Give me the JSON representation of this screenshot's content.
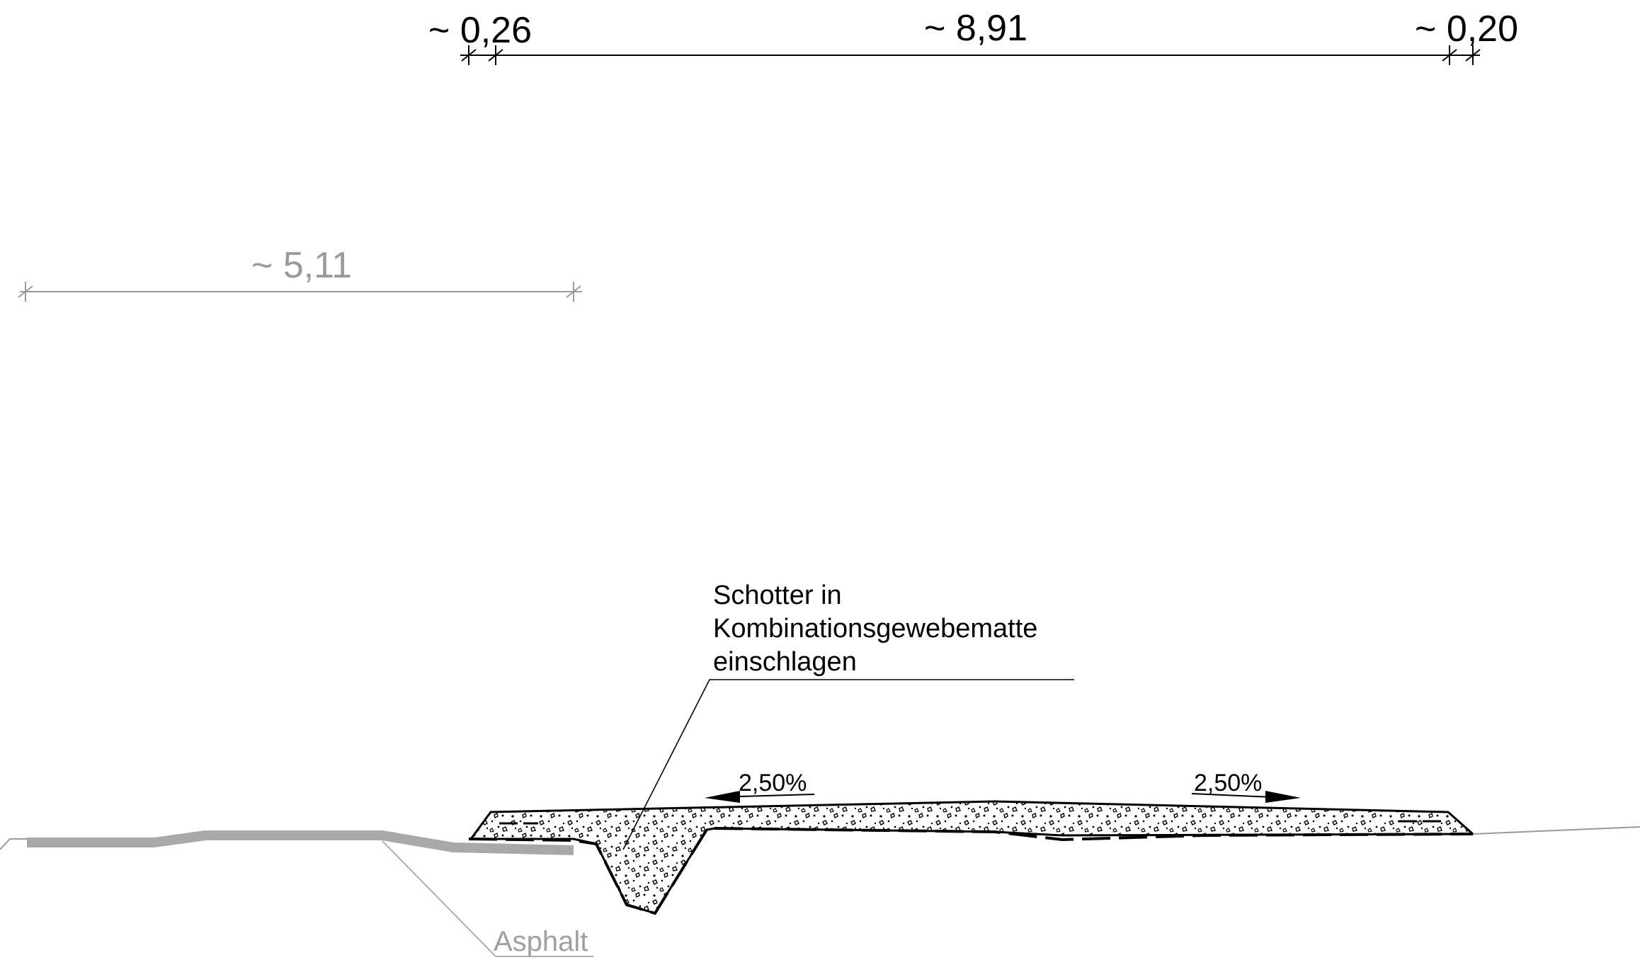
{
  "dimensions": {
    "left_small": "~ 0,26",
    "main": "~ 8,91",
    "right_small": "~ 0,20",
    "grey_width": "~ 5,11"
  },
  "labels": {
    "callout_line1": "Schotter in",
    "callout_line2": "Kombinationsgewebematte",
    "callout_line3": "einschlagen",
    "asphalt": "Asphalt"
  },
  "slopes": {
    "left": "2,50%",
    "right": "2,50%"
  },
  "colors": {
    "line": "#000000",
    "grey_line": "#9a9a9a",
    "asphalt_fill": "#a8a8a8"
  }
}
